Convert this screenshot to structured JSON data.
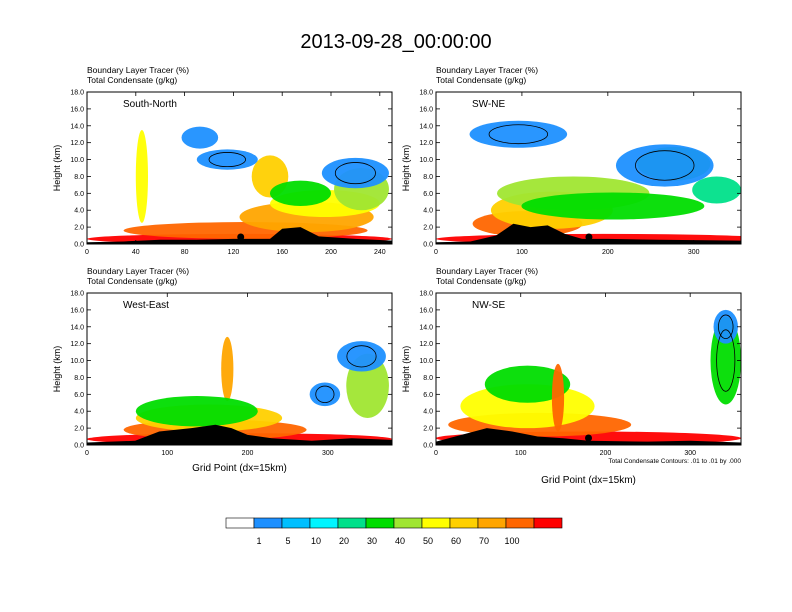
{
  "title": "2013-09-28_00:00:00",
  "legend": {
    "labels": [
      "1",
      "5",
      "10",
      "20",
      "30",
      "40",
      "50",
      "60",
      "70",
      "100"
    ],
    "colors": [
      "#ffffff",
      "#1e90ff",
      "#00bfff",
      "#00f5ff",
      "#00e08a",
      "#00dd00",
      "#a0e632",
      "#ffff00",
      "#ffd000",
      "#ffa500",
      "#ff6600",
      "#ff0000"
    ]
  },
  "contour_note": "Total Condensate Contours: .01 to .01 by .000",
  "chart_data": [
    {
      "type": "heatmap",
      "panel_label": "South-North",
      "title_line1": "Boundary Layer Tracer   (%)",
      "title_line2": "Total Condensate   (g/kg)",
      "xlabel": "",
      "ylabel": "Height (km)",
      "xlim": [
        0,
        250
      ],
      "xticks": [
        "0",
        "40",
        "80",
        "120",
        "160",
        "200",
        "240"
      ],
      "ylim": [
        0,
        18
      ],
      "yticks": [
        "0.0",
        "2.0",
        "4.0",
        "6.0",
        "8.0",
        "10.0",
        "12.0",
        "14.0",
        "16.0",
        "18.0"
      ],
      "marker_x": 126,
      "terrain": [
        [
          0,
          0.2
        ],
        [
          30,
          0.3
        ],
        [
          60,
          0.5
        ],
        [
          90,
          0.5
        ],
        [
          120,
          0.6
        ],
        [
          150,
          0.6
        ],
        [
          160,
          1.8
        ],
        [
          175,
          2.0
        ],
        [
          190,
          0.9
        ],
        [
          220,
          0.6
        ],
        [
          250,
          0.4
        ]
      ]
    },
    {
      "type": "heatmap",
      "panel_label": "SW-NE",
      "title_line1": "Boundary Layer Tracer   (%)",
      "title_line2": "Total Condensate   (g/kg)",
      "xlabel": "",
      "ylabel": "Height (km)",
      "xlim": [
        0,
        355
      ],
      "xticks": [
        "0",
        "100",
        "200",
        "300"
      ],
      "ylim": [
        0,
        18
      ],
      "yticks": [
        "0.0",
        "2.0",
        "4.0",
        "6.0",
        "8.0",
        "10.0",
        "12.0",
        "14.0",
        "16.0",
        "18.0"
      ],
      "marker_x": 178,
      "terrain": [
        [
          0,
          0.2
        ],
        [
          40,
          0.3
        ],
        [
          70,
          1.0
        ],
        [
          90,
          2.4
        ],
        [
          110,
          2.0
        ],
        [
          130,
          2.2
        ],
        [
          150,
          1.2
        ],
        [
          170,
          0.6
        ],
        [
          200,
          0.6
        ],
        [
          260,
          0.5
        ],
        [
          355,
          0.4
        ]
      ]
    },
    {
      "type": "heatmap",
      "panel_label": "West-East",
      "title_line1": "Boundary Layer Tracer   (%)",
      "title_line2": "Total Condensate   (g/kg)",
      "xlabel": "Grid Point (dx=15km)",
      "ylabel": "Height (km)",
      "xlim": [
        0,
        380
      ],
      "xticks": [
        "0",
        "100",
        "200",
        "300"
      ],
      "ylim": [
        0,
        18
      ],
      "yticks": [
        "0.0",
        "2.0",
        "4.0",
        "6.0",
        "8.0",
        "10.0",
        "12.0",
        "14.0",
        "16.0",
        "18.0"
      ],
      "marker_x": 195,
      "terrain": [
        [
          0,
          0.3
        ],
        [
          60,
          0.5
        ],
        [
          90,
          1.6
        ],
        [
          130,
          2.0
        ],
        [
          160,
          2.4
        ],
        [
          180,
          2.0
        ],
        [
          200,
          1.2
        ],
        [
          230,
          0.8
        ],
        [
          280,
          0.5
        ],
        [
          330,
          0.8
        ],
        [
          380,
          0.6
        ]
      ]
    },
    {
      "type": "heatmap",
      "panel_label": "NW-SE",
      "title_line1": "Boundary Layer Tracer   (%)",
      "title_line2": "Total Condensate   (g/kg)",
      "xlabel": "Grid Point (dx=15km)",
      "ylabel": "Height (km)",
      "xlim": [
        0,
        360
      ],
      "xticks": [
        "0",
        "100",
        "200",
        "300"
      ],
      "ylim": [
        0,
        18
      ],
      "yticks": [
        "0.0",
        "2.0",
        "4.0",
        "6.0",
        "8.0",
        "10.0",
        "12.0",
        "14.0",
        "16.0",
        "18.0"
      ],
      "marker_x": 180,
      "terrain": [
        [
          0,
          0.4
        ],
        [
          30,
          1.2
        ],
        [
          60,
          2.0
        ],
        [
          90,
          1.6
        ],
        [
          120,
          1.0
        ],
        [
          150,
          0.8
        ],
        [
          180,
          0.5
        ],
        [
          250,
          0.4
        ],
        [
          300,
          0.5
        ],
        [
          360,
          0.3
        ]
      ]
    }
  ]
}
